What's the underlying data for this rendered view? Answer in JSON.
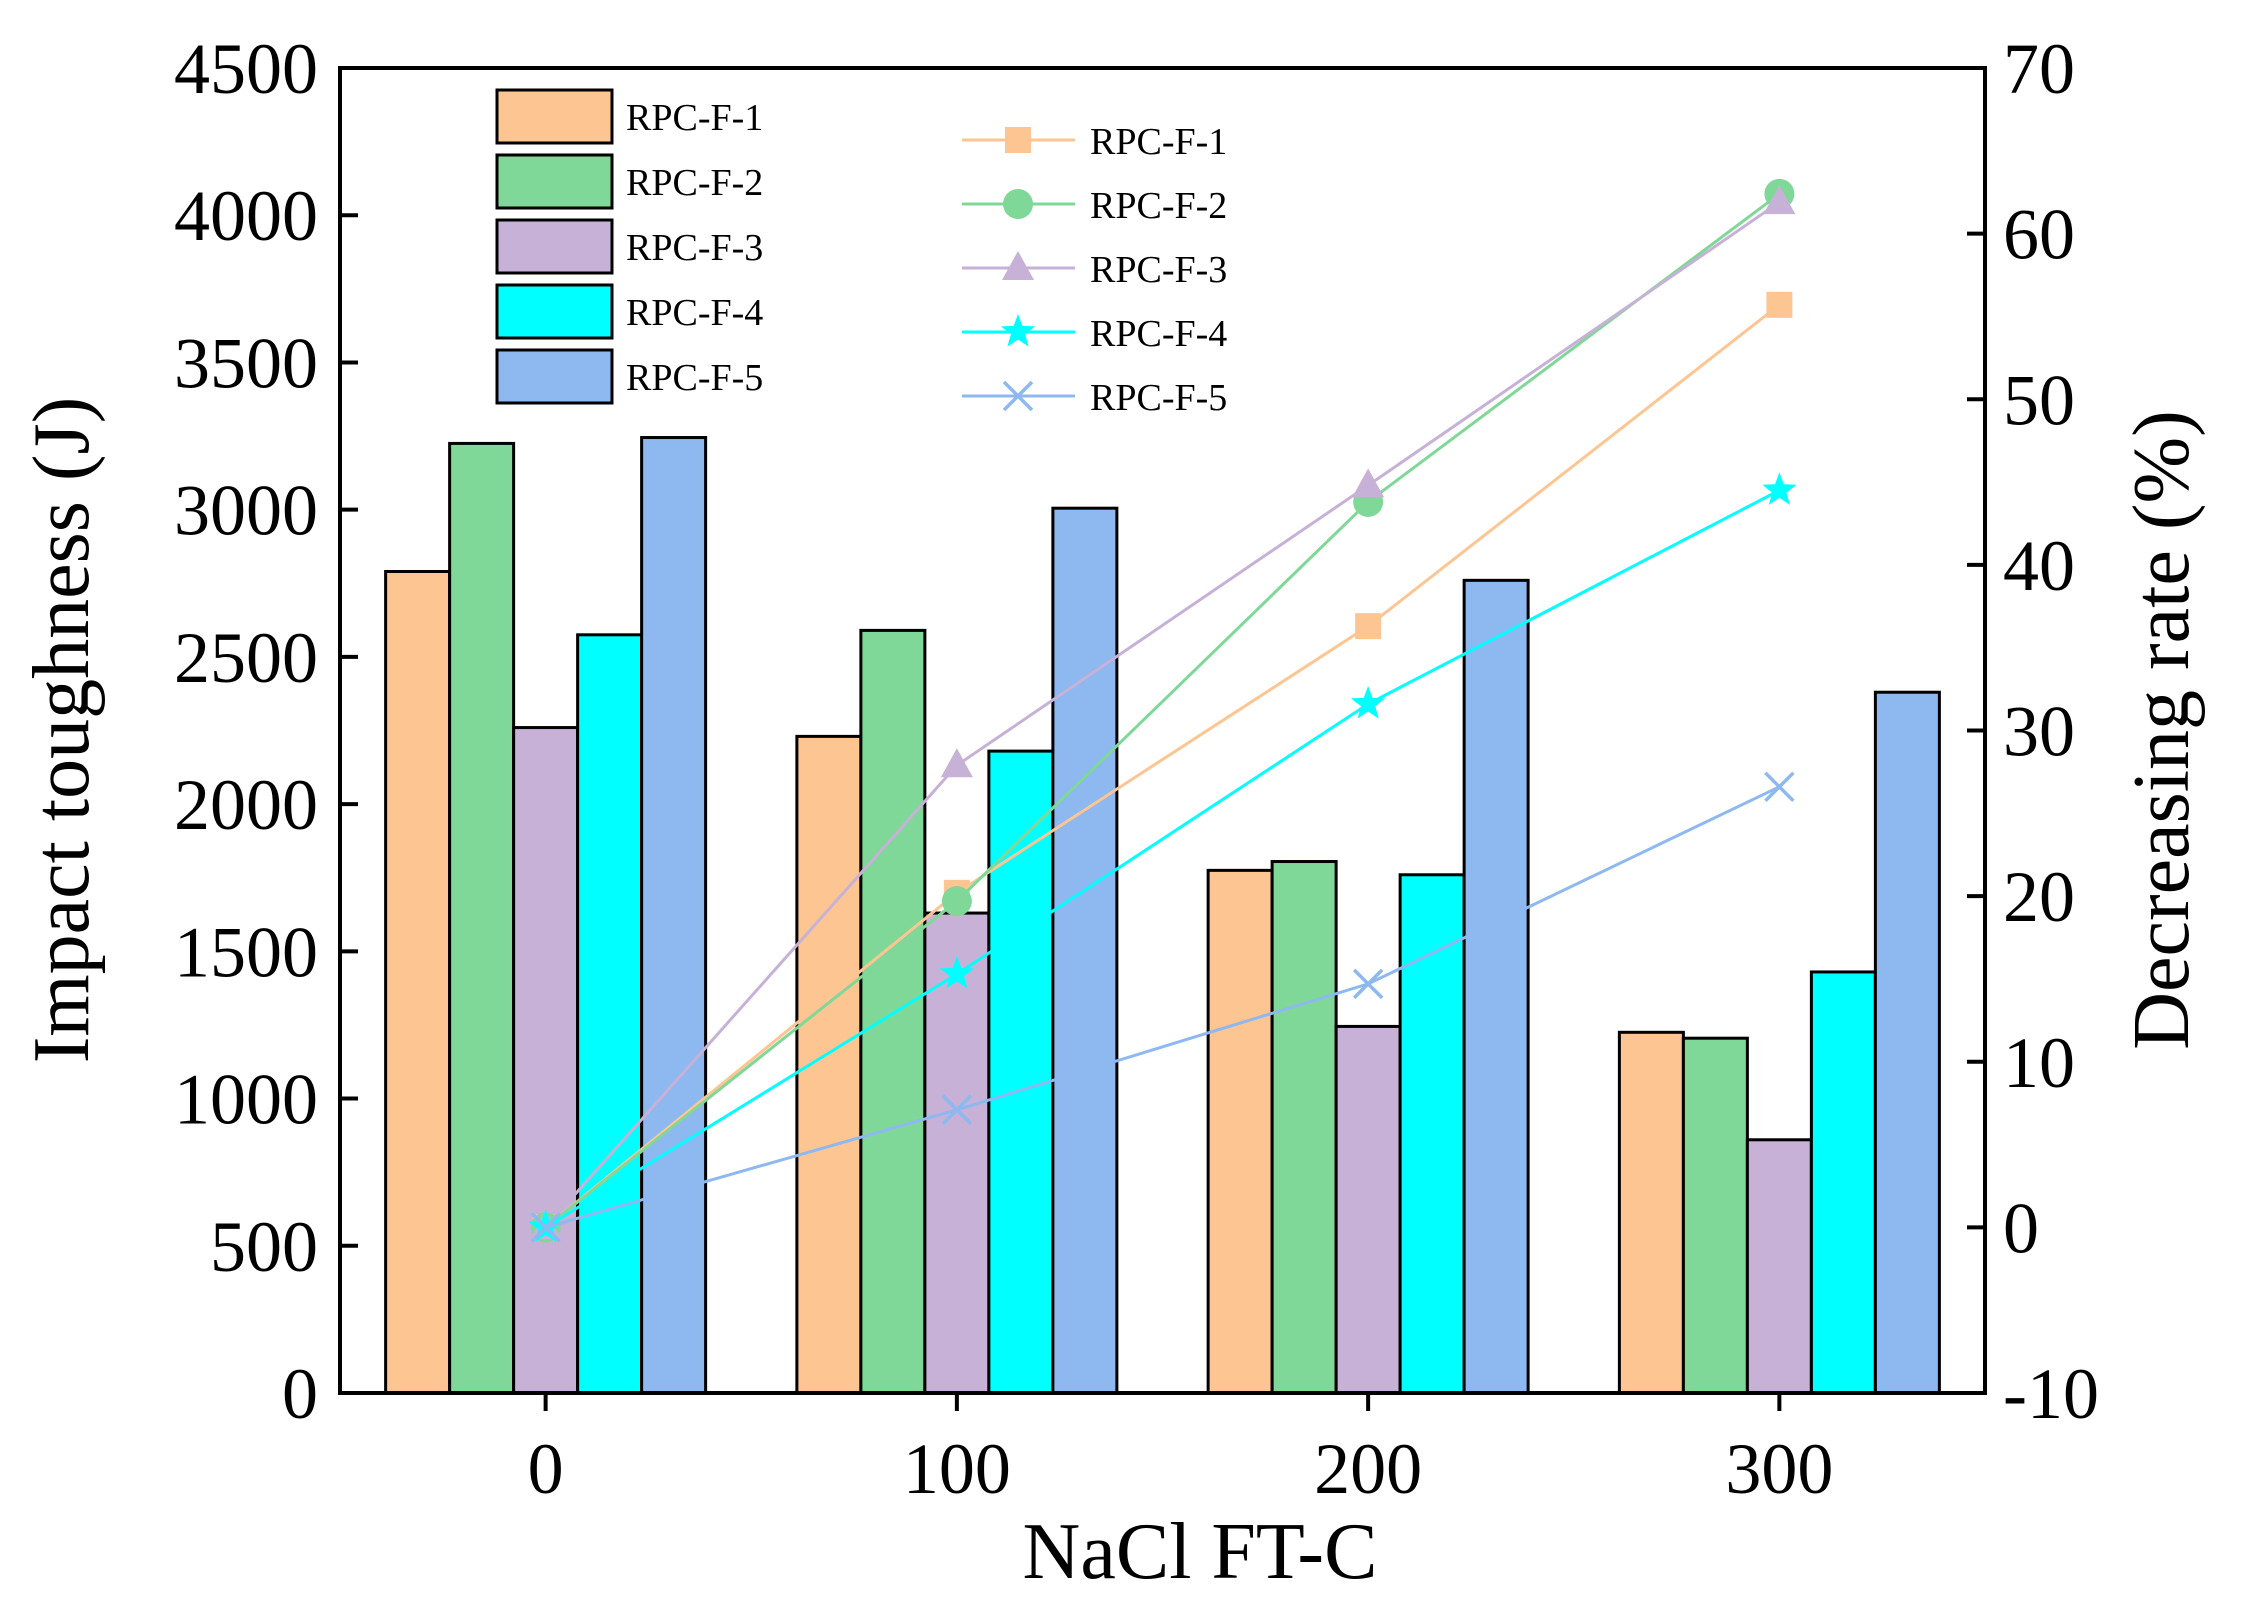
{
  "chart_data": {
    "type": "bar",
    "xlabel": "NaCl FT-C",
    "ylabel": "Impact toughness (J)",
    "y2label": "Decreasing rate (%)",
    "categories": [
      "0",
      "100",
      "200",
      "300"
    ],
    "ylim": [
      0,
      4500
    ],
    "yticks": [
      0,
      500,
      1000,
      1500,
      2000,
      2500,
      3000,
      3500,
      4000,
      4500
    ],
    "y2lim": [
      -10,
      70
    ],
    "y2ticks": [
      -10,
      0,
      10,
      20,
      30,
      40,
      50,
      60,
      70
    ],
    "bar_series": [
      {
        "name": "RPC-F-1",
        "color": "#FDC591",
        "values": [
          2790,
          2230,
          1775,
          1225
        ]
      },
      {
        "name": "RPC-F-2",
        "color": "#7FD898",
        "values": [
          3225,
          2590,
          1805,
          1205
        ]
      },
      {
        "name": "RPC-F-3",
        "color": "#C7B1D7",
        "values": [
          2260,
          1630,
          1245,
          860
        ]
      },
      {
        "name": "RPC-F-4",
        "color": "#00FFFF",
        "values": [
          2575,
          2180,
          1760,
          1430
        ]
      },
      {
        "name": "RPC-F-5",
        "color": "#8DB8F0",
        "values": [
          3245,
          3005,
          2760,
          2380
        ]
      }
    ],
    "line_series": [
      {
        "name": "RPC-F-1",
        "color": "#FDC591",
        "marker": "square",
        "values": [
          0,
          20.2,
          36.3,
          55.7
        ]
      },
      {
        "name": "RPC-F-2",
        "color": "#7FD898",
        "marker": "circle",
        "values": [
          0,
          19.7,
          43.8,
          62.4
        ]
      },
      {
        "name": "RPC-F-3",
        "color": "#C7B1D7",
        "marker": "triangle",
        "values": [
          0,
          27.9,
          44.8,
          61.9
        ]
      },
      {
        "name": "RPC-F-4",
        "color": "#00FFFF",
        "marker": "star",
        "values": [
          0,
          15.3,
          31.6,
          44.5
        ]
      },
      {
        "name": "RPC-F-5",
        "color": "#8DB8F0",
        "marker": "cross",
        "values": [
          0,
          7.1,
          14.7,
          26.6
        ]
      }
    ]
  }
}
